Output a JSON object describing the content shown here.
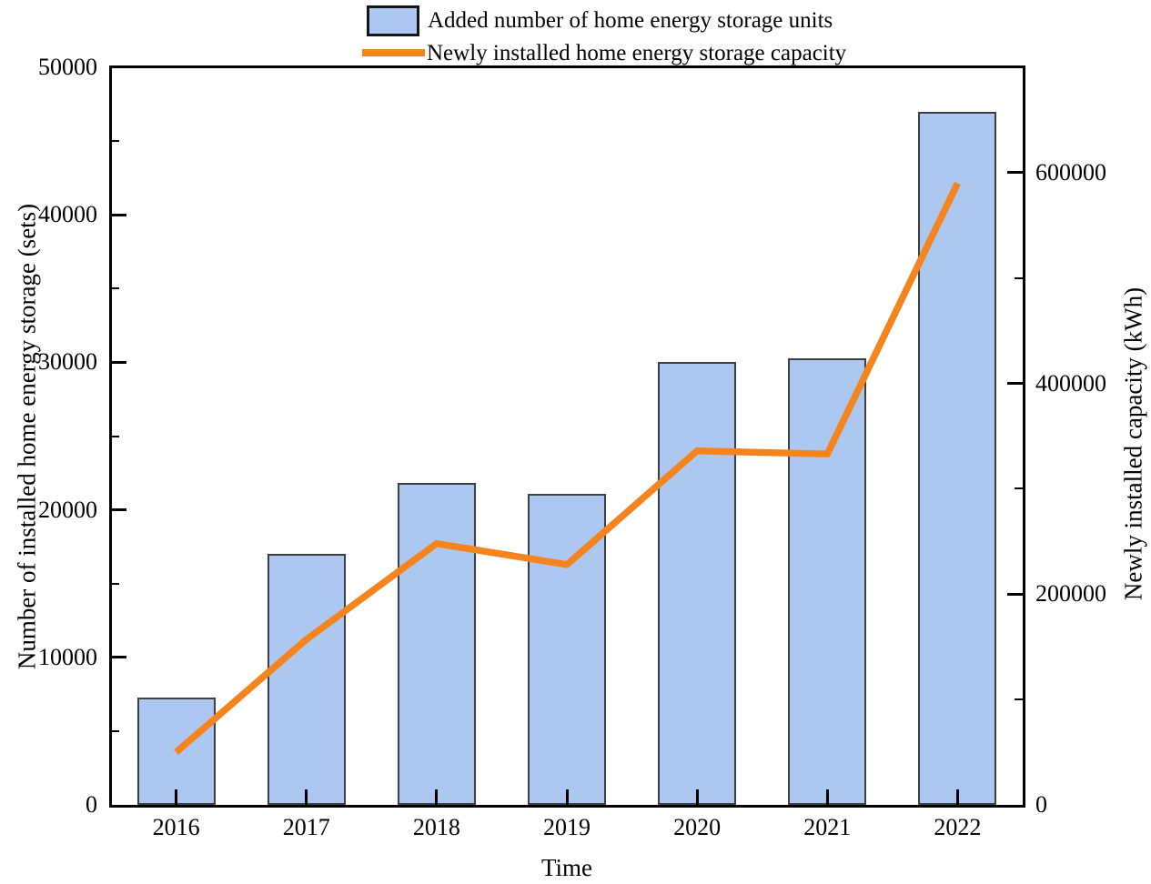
{
  "chart_data": {
    "type": "bar+line",
    "categories": [
      "2016",
      "2017",
      "2018",
      "2019",
      "2020",
      "2021",
      "2022"
    ],
    "series": [
      {
        "name": "Added number of home energy storage units",
        "type": "bar",
        "axis": "left",
        "values": [
          7300,
          17000,
          21800,
          21100,
          30000,
          30300,
          47000
        ],
        "color": "#ACC8F0",
        "border_color": "#3f3f3f"
      },
      {
        "name": "Newly installed home energy storage capacity",
        "type": "line",
        "axis": "right",
        "values": [
          50000,
          157000,
          248000,
          228000,
          336000,
          333000,
          590000
        ],
        "color": "#F5841E",
        "stroke_width": 7.5
      }
    ],
    "xlabel": "Time",
    "ylabel_left": "Number of installed home energy storage (sets)",
    "ylabel_right": "Newly installed capacity (kWh)",
    "left_axis": {
      "min": 0,
      "max": 50000,
      "major_step": 10000,
      "minor_step": 5000,
      "tick_labels": [
        "0",
        "10000",
        "20000",
        "30000",
        "40000",
        "50000"
      ]
    },
    "right_axis": {
      "min": 0,
      "max": 700000,
      "major_step": 200000,
      "minor_step": 100000,
      "tick_labels": [
        "0",
        "200000",
        "400000",
        "600000"
      ]
    },
    "grid": false,
    "legend_position": "top-center",
    "axis_color": "#000000",
    "text_color": "#000000"
  }
}
